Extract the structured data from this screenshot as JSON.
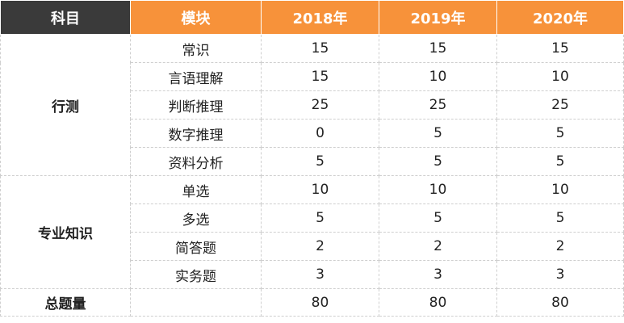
{
  "headers": [
    "科目",
    "模块",
    "2018年",
    "2019年",
    "2020年"
  ],
  "colors": {
    "header_dark": "#3a3a3a",
    "header_accent": "#f7923a"
  },
  "groups": [
    {
      "subject": "行测",
      "rows": [
        {
          "module": "常识",
          "y2018": "15",
          "y2019": "15",
          "y2020": "15"
        },
        {
          "module": "言语理解",
          "y2018": "15",
          "y2019": "10",
          "y2020": "10"
        },
        {
          "module": "判断推理",
          "y2018": "25",
          "y2019": "25",
          "y2020": "25"
        },
        {
          "module": "数字推理",
          "y2018": "0",
          "y2019": "5",
          "y2020": "5"
        },
        {
          "module": "资料分析",
          "y2018": "5",
          "y2019": "5",
          "y2020": "5"
        }
      ]
    },
    {
      "subject": "专业知识",
      "rows": [
        {
          "module": "单选",
          "y2018": "10",
          "y2019": "10",
          "y2020": "10"
        },
        {
          "module": "多选",
          "y2018": "5",
          "y2019": "5",
          "y2020": "5"
        },
        {
          "module": "简答题",
          "y2018": "2",
          "y2019": "2",
          "y2020": "2"
        },
        {
          "module": "实务题",
          "y2018": "3",
          "y2019": "3",
          "y2020": "3"
        }
      ]
    }
  ],
  "total": {
    "label": "总题量",
    "module": "",
    "y2018": "80",
    "y2019": "80",
    "y2020": "80"
  }
}
